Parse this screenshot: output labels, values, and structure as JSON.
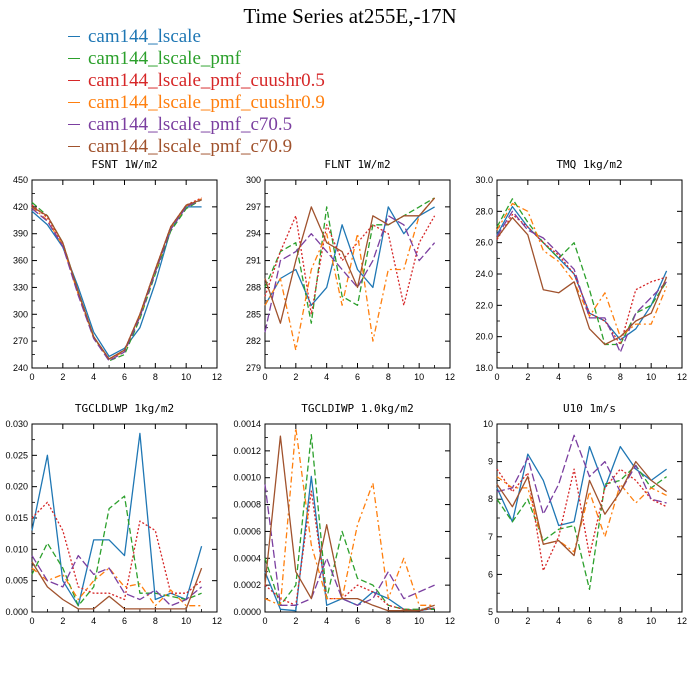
{
  "title": "Time Series at255E,-17N",
  "legend": [
    {
      "name": "cam144_lscale",
      "color": "#1f77b4"
    },
    {
      "name": "cam144_lscale_pmf",
      "color": "#2ca02c"
    },
    {
      "name": "cam144_lscale_pmf_cuushr0.5",
      "color": "#d62728"
    },
    {
      "name": "cam144_lscale_pmf_cuushr0.9",
      "color": "#ff7f0e"
    },
    {
      "name": "cam144_lscale_pmf_c70.5",
      "color": "#7b3fa0"
    },
    {
      "name": "cam144_lscale_pmf_c70.9",
      "color": "#a0522d"
    }
  ],
  "chart_data": [
    {
      "type": "line",
      "title": "FSNT  1W/m2",
      "x": [
        0,
        1,
        2,
        3,
        4,
        5,
        6,
        7,
        8,
        9,
        10,
        11
      ],
      "xlim": [
        0,
        12
      ],
      "xticks": [
        "0",
        "2",
        "4",
        "6",
        "8",
        "10",
        "12"
      ],
      "xtick_values": [
        0,
        2,
        4,
        6,
        8,
        10,
        12
      ],
      "ylim": [
        240,
        450
      ],
      "yticks": [
        "240",
        "270",
        "300",
        "330",
        "360",
        "390",
        "420",
        "450"
      ],
      "ytick_values": [
        240,
        270,
        300,
        330,
        360,
        390,
        420,
        450
      ],
      "series": [
        {
          "name": "cam144_lscale",
          "values": [
            415,
            400,
            375,
            330,
            280,
            253,
            262,
            285,
            335,
            395,
            420,
            420
          ]
        },
        {
          "name": "cam144_lscale_pmf",
          "values": [
            425,
            410,
            380,
            325,
            275,
            248,
            255,
            295,
            345,
            393,
            418,
            428
          ]
        },
        {
          "name": "cam144_lscale_pmf_cuushr0.5",
          "values": [
            422,
            408,
            378,
            323,
            275,
            250,
            260,
            300,
            350,
            398,
            422,
            430
          ]
        },
        {
          "name": "cam144_lscale_pmf_cuushr0.9",
          "values": [
            420,
            405,
            377,
            322,
            274,
            249,
            259,
            298,
            348,
            396,
            421,
            429
          ]
        },
        {
          "name": "cam144_lscale_pmf_c70.5",
          "values": [
            418,
            404,
            376,
            321,
            273,
            248,
            258,
            297,
            347,
            395,
            420,
            428
          ]
        },
        {
          "name": "cam144_lscale_pmf_c70.9",
          "values": [
            420,
            410,
            380,
            325,
            275,
            250,
            260,
            300,
            350,
            398,
            422,
            428
          ]
        }
      ]
    },
    {
      "type": "line",
      "title": "FLNT  1W/m2",
      "x": [
        0,
        1,
        2,
        3,
        4,
        5,
        6,
        7,
        8,
        9,
        10,
        11
      ],
      "xlim": [
        0,
        12
      ],
      "xticks": [
        "0",
        "2",
        "4",
        "6",
        "8",
        "10",
        "12"
      ],
      "xtick_values": [
        0,
        2,
        4,
        6,
        8,
        10,
        12
      ],
      "ylim": [
        279,
        300
      ],
      "yticks": [
        "279",
        "282",
        "285",
        "288",
        "291",
        "294",
        "297",
        "300"
      ],
      "ytick_values": [
        279,
        282,
        285,
        288,
        291,
        294,
        297,
        300
      ],
      "series": [
        {
          "name": "cam144_lscale",
          "values": [
            286,
            289,
            290,
            286,
            288,
            295,
            290,
            288,
            297,
            294,
            296,
            297
          ]
        },
        {
          "name": "cam144_lscale_pmf",
          "values": [
            288,
            292,
            293,
            284,
            297,
            287,
            286,
            295,
            295,
            296,
            297,
            298
          ]
        },
        {
          "name": "cam144_lscale_pmf_cuushr0.5",
          "values": [
            287,
            292,
            296,
            285,
            295,
            291,
            293,
            295,
            294,
            286,
            293,
            296
          ]
        },
        {
          "name": "cam144_lscale_pmf_cuushr0.9",
          "values": [
            286,
            289,
            281,
            290,
            294,
            286,
            294,
            282,
            290,
            290,
            296,
            298
          ]
        },
        {
          "name": "cam144_lscale_pmf_c70.5",
          "values": [
            283,
            291,
            292,
            294,
            292,
            290,
            288,
            291,
            296,
            295,
            291,
            293
          ]
        },
        {
          "name": "cam144_lscale_pmf_c70.9",
          "values": [
            289,
            284,
            291,
            297,
            293,
            292,
            288,
            296,
            295,
            296,
            296,
            298
          ]
        }
      ]
    },
    {
      "type": "line",
      "title": "TMQ  1kg/m2",
      "x": [
        0,
        1,
        2,
        3,
        4,
        5,
        6,
        7,
        8,
        9,
        10,
        11
      ],
      "xlim": [
        0,
        12
      ],
      "xticks": [
        "0",
        "2",
        "4",
        "6",
        "8",
        "10",
        "12"
      ],
      "xtick_values": [
        0,
        2,
        4,
        6,
        8,
        10,
        12
      ],
      "ylim": [
        18,
        30
      ],
      "yticks": [
        "18.0",
        "20.0",
        "22.0",
        "24.0",
        "26.0",
        "28.0",
        "30.0"
      ],
      "ytick_values": [
        18,
        20,
        22,
        24,
        26,
        28,
        30
      ],
      "series": [
        {
          "name": "cam144_lscale",
          "values": [
            26.5,
            28.3,
            27,
            26,
            25,
            24,
            21.5,
            21,
            19.8,
            20.5,
            22,
            24.2
          ]
        },
        {
          "name": "cam144_lscale_pmf",
          "values": [
            27,
            28.8,
            27.3,
            26,
            25,
            26,
            23,
            19.5,
            19.5,
            21.5,
            22,
            23.5
          ]
        },
        {
          "name": "cam144_lscale_pmf_cuushr0.5",
          "values": [
            26.2,
            27.8,
            27,
            26,
            25.2,
            24,
            21.5,
            21,
            19.5,
            23,
            23.5,
            23.8
          ]
        },
        {
          "name": "cam144_lscale_pmf_cuushr0.9",
          "values": [
            26.8,
            28.5,
            28,
            25.5,
            24.8,
            23.5,
            21.3,
            22.8,
            20,
            20.8,
            20.8,
            23.2
          ]
        },
        {
          "name": "cam144_lscale_pmf_c70.5",
          "values": [
            26.4,
            28,
            26.8,
            26.3,
            25.3,
            24.3,
            21.2,
            21.2,
            19,
            21.5,
            22.5,
            23.5
          ]
        },
        {
          "name": "cam144_lscale_pmf_c70.9",
          "values": [
            26.3,
            27.6,
            26.5,
            23,
            22.8,
            23.5,
            20.5,
            19.5,
            20,
            21,
            21.5,
            23.8
          ]
        }
      ]
    },
    {
      "type": "line",
      "title": "TGCLDLWP  1kg/m2",
      "x": [
        0,
        1,
        2,
        3,
        4,
        5,
        6,
        7,
        8,
        9,
        10,
        11
      ],
      "xlim": [
        0,
        12
      ],
      "xticks": [
        "0",
        "2",
        "4",
        "6",
        "8",
        "10",
        "12"
      ],
      "xtick_values": [
        0,
        2,
        4,
        6,
        8,
        10,
        12
      ],
      "ylim": [
        0,
        0.03
      ],
      "yticks": [
        "0.000",
        "0.005",
        "0.010",
        "0.015",
        "0.020",
        "0.025",
        "0.030"
      ],
      "ytick_values": [
        0,
        0.005,
        0.01,
        0.015,
        0.02,
        0.025,
        0.03
      ],
      "series": [
        {
          "name": "cam144_lscale",
          "values": [
            0.013,
            0.025,
            0.005,
            0.001,
            0.0115,
            0.0115,
            0.009,
            0.0285,
            0.002,
            0.003,
            0.002,
            0.0105
          ]
        },
        {
          "name": "cam144_lscale_pmf",
          "values": [
            0.006,
            0.011,
            0.007,
            0.001,
            0.004,
            0.0165,
            0.0185,
            0.003,
            0.003,
            0.0025,
            0.002,
            0.003
          ]
        },
        {
          "name": "cam144_lscale_pmf_cuushr0.5",
          "values": [
            0.015,
            0.0175,
            0.013,
            0.004,
            0.003,
            0.003,
            0.002,
            0.0145,
            0.013,
            0.003,
            0.003,
            0.005
          ]
        },
        {
          "name": "cam144_lscale_pmf_cuushr0.9",
          "values": [
            0.007,
            0.005,
            0.006,
            0.002,
            0.005,
            0.007,
            0.004,
            0.0045,
            0.001,
            0.0035,
            0.001,
            0.001
          ]
        },
        {
          "name": "cam144_lscale_pmf_c70.5",
          "values": [
            0.009,
            0.005,
            0.004,
            0.009,
            0.006,
            0.007,
            0.003,
            0.002,
            0.0035,
            0.001,
            0.002,
            0.004
          ]
        },
        {
          "name": "cam144_lscale_pmf_c70.9",
          "values": [
            0.008,
            0.004,
            0.002,
            0.0005,
            0.0005,
            0.0025,
            0.0005,
            0.0005,
            0.0005,
            0.0005,
            0.0005,
            0.007
          ]
        }
      ]
    },
    {
      "type": "line",
      "title": "TGCLDIWP  1.0kg/m2",
      "x": [
        0,
        1,
        2,
        3,
        4,
        5,
        6,
        7,
        8,
        9,
        10,
        11
      ],
      "xlim": [
        0,
        12
      ],
      "xticks": [
        "0",
        "2",
        "4",
        "6",
        "8",
        "10",
        "12"
      ],
      "xtick_values": [
        0,
        2,
        4,
        6,
        8,
        10,
        12
      ],
      "ylim": [
        0,
        0.0014
      ],
      "yticks": [
        "0.0000",
        "0.0002",
        "0.0004",
        "0.0006",
        "0.0008",
        "0.0010",
        "0.0012",
        "0.0014"
      ],
      "ytick_values": [
        0,
        0.0002,
        0.0004,
        0.0006,
        0.0008,
        0.001,
        0.0012,
        0.0014
      ],
      "series": [
        {
          "name": "cam144_lscale",
          "values": [
            0.0003,
            2e-05,
            1e-05,
            0.00101,
            5e-05,
            0.0001,
            5e-05,
            0.00015,
            0.0001,
            2e-05,
            1e-05,
            3e-05
          ]
        },
        {
          "name": "cam144_lscale_pmf",
          "values": [
            0.0004,
            5e-05,
            0.0002,
            0.00132,
            0.0001,
            0.0006,
            0.00025,
            0.0002,
            5e-05,
            2e-05,
            2e-05,
            2e-05
          ]
        },
        {
          "name": "cam144_lscale_pmf_cuushr0.5",
          "values": [
            0.0002,
            0.0001,
            5e-05,
            0.0009,
            0.0001,
            0.0001,
            0.0002,
            0.00015,
            5e-05,
            2e-05,
            1e-05,
            3e-05
          ]
        },
        {
          "name": "cam144_lscale_pmf_cuushr0.9",
          "values": [
            0.0001,
            5e-05,
            0.00137,
            0.0005,
            0.0001,
            0.0001,
            0.00065,
            0.00096,
            0.0001,
            0.0004,
            5e-05,
            5e-05
          ]
        },
        {
          "name": "cam144_lscale_pmf_c70.5",
          "values": [
            0.00095,
            5e-05,
            5e-05,
            0.0001,
            0.0004,
            0.0001,
            5e-05,
            0.0001,
            0.0003,
            0.0001,
            0.00015,
            0.0002
          ]
        },
        {
          "name": "cam144_lscale_pmf_c70.9",
          "values": [
            0.0002,
            0.00131,
            0.0003,
            0.0001,
            0.00065,
            0.0001,
            0.0001,
            5e-05,
            1e-05,
            1e-05,
            1e-05,
            5e-05
          ]
        }
      ]
    },
    {
      "type": "line",
      "title": "U10  1m/s",
      "x": [
        0,
        1,
        2,
        3,
        4,
        5,
        6,
        7,
        8,
        9,
        10,
        11
      ],
      "xlim": [
        0,
        12
      ],
      "xticks": [
        "0",
        "2",
        "4",
        "6",
        "8",
        "10",
        "12"
      ],
      "xtick_values": [
        0,
        2,
        4,
        6,
        8,
        10,
        12
      ],
      "ylim": [
        5,
        10
      ],
      "yticks": [
        "5",
        "6",
        "7",
        "8",
        "9",
        "10"
      ],
      "ytick_values": [
        5,
        6,
        7,
        8,
        9,
        10
      ],
      "series": [
        {
          "name": "cam144_lscale",
          "values": [
            8.3,
            7.4,
            9.2,
            8.5,
            7.3,
            7.4,
            9.4,
            8.3,
            9.4,
            8.8,
            8.5,
            8.8
          ]
        },
        {
          "name": "cam144_lscale_pmf",
          "values": [
            8.0,
            7.4,
            8.0,
            6.9,
            7.2,
            7.3,
            5.6,
            8.4,
            8.5,
            8.9,
            8.3,
            8.6
          ]
        },
        {
          "name": "cam144_lscale_pmf_cuushr0.5",
          "values": [
            8.8,
            8.2,
            8.7,
            6.1,
            7.0,
            8.8,
            6.5,
            8.3,
            8.8,
            8.5,
            8.0,
            7.8
          ]
        },
        {
          "name": "cam144_lscale_pmf_cuushr0.9",
          "values": [
            8.6,
            8.3,
            8.3,
            6.8,
            6.9,
            6.6,
            8.2,
            7.0,
            8.4,
            7.9,
            8.3,
            8.1
          ]
        },
        {
          "name": "cam144_lscale_pmf_c70.5",
          "values": [
            8.2,
            8.3,
            9.1,
            7.6,
            8.4,
            9.7,
            8.6,
            9.0,
            8.2,
            8.9,
            8.0,
            7.9
          ]
        },
        {
          "name": "cam144_lscale_pmf_c70.9",
          "values": [
            8.4,
            7.8,
            8.6,
            6.8,
            6.9,
            6.5,
            8.5,
            7.6,
            8.2,
            9.0,
            8.5,
            8.2
          ]
        }
      ]
    }
  ]
}
